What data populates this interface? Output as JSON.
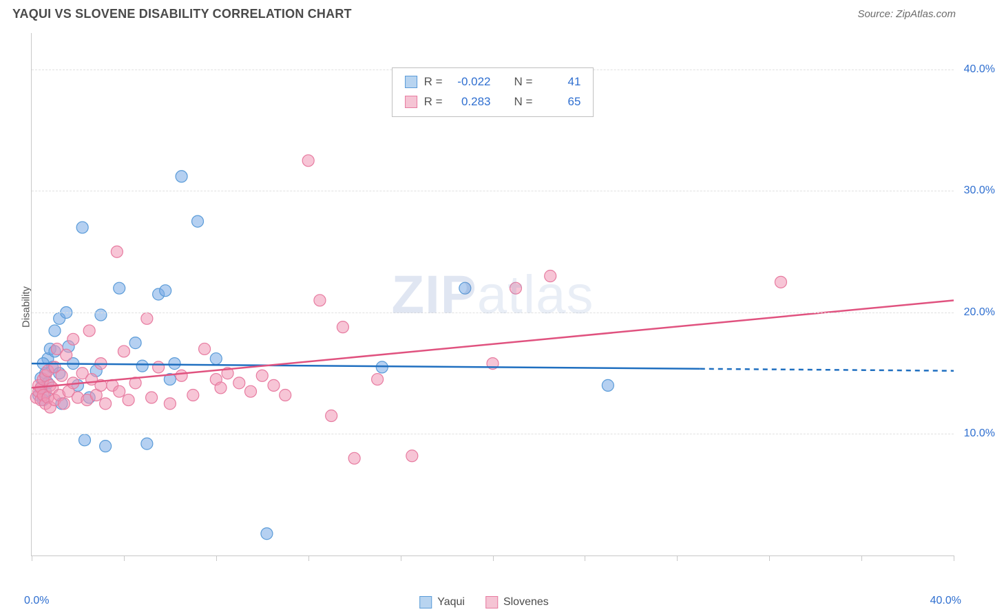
{
  "header": {
    "title": "YAQUI VS SLOVENE DISABILITY CORRELATION CHART",
    "source": "Source: ZipAtlas.com"
  },
  "ylabel": "Disability",
  "watermark_bold": "ZIP",
  "watermark_rest": "atlas",
  "chart": {
    "type": "scatter",
    "xlim": [
      0,
      40
    ],
    "ylim": [
      0,
      43
    ],
    "x_ticks": [
      0,
      4,
      8,
      12,
      16,
      20,
      24,
      28,
      32,
      36,
      40
    ],
    "y_gridlines": [
      10,
      20,
      30,
      40
    ],
    "y_tick_labels": [
      "10.0%",
      "20.0%",
      "30.0%",
      "40.0%"
    ],
    "x_min_label": "0.0%",
    "x_max_label": "40.0%",
    "background_color": "#ffffff",
    "grid_color": "#e0e0e0",
    "axis_color": "#c8c8c8",
    "tick_label_color": "#2f6fd0",
    "point_radius": 8.5,
    "point_stroke_width": 1.2,
    "trend_line_width": 2.5,
    "series": [
      {
        "name": "Yaqui",
        "fill": "rgba(120,170,230,0.55)",
        "stroke": "#5a9bd8",
        "swatch_fill": "#b8d4f0",
        "swatch_border": "#5a9bd8",
        "R": "-0.022",
        "N": "41",
        "trend": {
          "y_at_x0": 15.8,
          "y_at_x40": 15.2,
          "solid_until_x": 29,
          "color": "#1f6fc0"
        },
        "points": [
          [
            0.3,
            13.2
          ],
          [
            0.4,
            13.8
          ],
          [
            0.4,
            14.6
          ],
          [
            0.5,
            12.8
          ],
          [
            0.6,
            15.0
          ],
          [
            0.6,
            13.5
          ],
          [
            0.7,
            16.2
          ],
          [
            0.7,
            14.2
          ],
          [
            0.8,
            17.0
          ],
          [
            0.9,
            15.5
          ],
          [
            1.0,
            16.8
          ],
          [
            1.0,
            18.5
          ],
          [
            1.2,
            15.0
          ],
          [
            1.2,
            19.5
          ],
          [
            1.3,
            12.5
          ],
          [
            1.5,
            20.0
          ],
          [
            1.6,
            17.2
          ],
          [
            1.8,
            15.8
          ],
          [
            2.0,
            14.0
          ],
          [
            2.2,
            27.0
          ],
          [
            2.3,
            9.5
          ],
          [
            2.5,
            13.0
          ],
          [
            2.8,
            15.2
          ],
          [
            3.0,
            19.8
          ],
          [
            3.2,
            9.0
          ],
          [
            3.8,
            22.0
          ],
          [
            4.5,
            17.5
          ],
          [
            4.8,
            15.6
          ],
          [
            5.0,
            9.2
          ],
          [
            5.5,
            21.5
          ],
          [
            5.8,
            21.8
          ],
          [
            6.0,
            14.5
          ],
          [
            6.2,
            15.8
          ],
          [
            6.5,
            31.2
          ],
          [
            7.2,
            27.5
          ],
          [
            8.0,
            16.2
          ],
          [
            10.2,
            1.8
          ],
          [
            15.2,
            15.5
          ],
          [
            18.8,
            22.0
          ],
          [
            25.0,
            14.0
          ],
          [
            0.5,
            15.8
          ]
        ]
      },
      {
        "name": "Slovenes",
        "fill": "rgba(240,150,180,0.55)",
        "stroke": "#e77ba0",
        "swatch_fill": "#f5c4d4",
        "swatch_border": "#e77ba0",
        "R": "0.283",
        "N": "65",
        "trend": {
          "y_at_x0": 13.8,
          "y_at_x40": 21.0,
          "solid_until_x": 40,
          "color": "#e0527f"
        },
        "points": [
          [
            0.2,
            13.0
          ],
          [
            0.3,
            13.5
          ],
          [
            0.3,
            14.0
          ],
          [
            0.4,
            12.8
          ],
          [
            0.4,
            13.8
          ],
          [
            0.5,
            14.5
          ],
          [
            0.5,
            13.2
          ],
          [
            0.6,
            12.5
          ],
          [
            0.6,
            14.8
          ],
          [
            0.7,
            13.0
          ],
          [
            0.7,
            15.2
          ],
          [
            0.8,
            12.2
          ],
          [
            0.8,
            14.0
          ],
          [
            0.9,
            13.8
          ],
          [
            1.0,
            12.8
          ],
          [
            1.0,
            15.5
          ],
          [
            1.1,
            17.0
          ],
          [
            1.2,
            13.2
          ],
          [
            1.3,
            14.8
          ],
          [
            1.4,
            12.5
          ],
          [
            1.5,
            16.5
          ],
          [
            1.6,
            13.5
          ],
          [
            1.8,
            14.2
          ],
          [
            1.8,
            17.8
          ],
          [
            2.0,
            13.0
          ],
          [
            2.2,
            15.0
          ],
          [
            2.4,
            12.8
          ],
          [
            2.5,
            18.5
          ],
          [
            2.6,
            14.5
          ],
          [
            2.8,
            13.2
          ],
          [
            3.0,
            15.8
          ],
          [
            3.2,
            12.5
          ],
          [
            3.5,
            14.0
          ],
          [
            3.7,
            25.0
          ],
          [
            3.8,
            13.5
          ],
          [
            4.0,
            16.8
          ],
          [
            4.2,
            12.8
          ],
          [
            4.5,
            14.2
          ],
          [
            5.0,
            19.5
          ],
          [
            5.2,
            13.0
          ],
          [
            5.5,
            15.5
          ],
          [
            6.0,
            12.5
          ],
          [
            6.5,
            14.8
          ],
          [
            7.0,
            13.2
          ],
          [
            7.5,
            17.0
          ],
          [
            8.0,
            14.5
          ],
          [
            8.2,
            13.8
          ],
          [
            8.5,
            15.0
          ],
          [
            9.0,
            14.2
          ],
          [
            9.5,
            13.5
          ],
          [
            10.0,
            14.8
          ],
          [
            10.5,
            14.0
          ],
          [
            11.0,
            13.2
          ],
          [
            12.0,
            32.5
          ],
          [
            12.5,
            21.0
          ],
          [
            13.0,
            11.5
          ],
          [
            13.5,
            18.8
          ],
          [
            14.0,
            8.0
          ],
          [
            15.0,
            14.5
          ],
          [
            16.5,
            8.2
          ],
          [
            20.0,
            15.8
          ],
          [
            21.0,
            22.0
          ],
          [
            22.5,
            23.0
          ],
          [
            32.5,
            22.5
          ],
          [
            3.0,
            14.0
          ]
        ]
      }
    ]
  },
  "legend": {
    "series1_label": "Yaqui",
    "series2_label": "Slovenes"
  },
  "stats_labels": {
    "R": "R =",
    "N": "N ="
  }
}
